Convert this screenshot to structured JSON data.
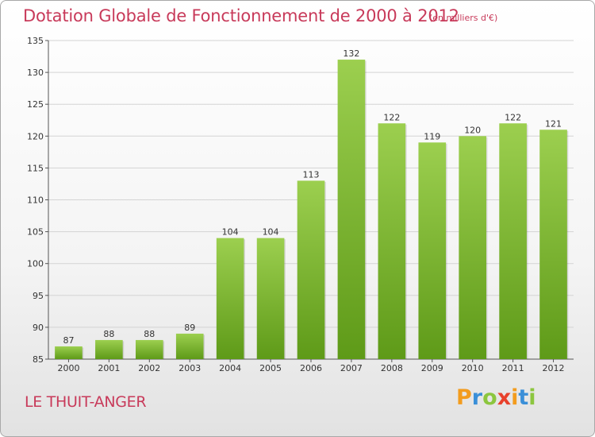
{
  "title": "Dotation Globale de Fonctionnement de 2000 à 2012",
  "subtitle": "(en milliers d'€)",
  "city": "LE THUIT-ANGER",
  "logo": {
    "letters": [
      "P",
      "r",
      "o",
      "x",
      "i",
      "t",
      "i"
    ],
    "colors": [
      "#f39c1e",
      "#3a8fd8",
      "#8cc63f",
      "#e8412c",
      "#f39c1e",
      "#3a8fd8",
      "#8cc63f"
    ]
  },
  "colors": {
    "title": "#c83a5a",
    "bar_top": "#9ccf4f",
    "bar_bottom": "#5e9a18"
  },
  "chart_data": {
    "type": "bar",
    "categories": [
      "2000",
      "2001",
      "2002",
      "2003",
      "2004",
      "2005",
      "2006",
      "2007",
      "2008",
      "2009",
      "2010",
      "2011",
      "2012"
    ],
    "values": [
      87,
      88,
      88,
      89,
      104,
      104,
      113,
      132,
      122,
      119,
      120,
      122,
      121
    ],
    "ylim": [
      85,
      135
    ],
    "yticks": [
      85,
      90,
      95,
      100,
      105,
      110,
      115,
      120,
      125,
      130,
      135
    ],
    "xlabel": "",
    "ylabel": "",
    "grid": true,
    "data_labels": true
  }
}
